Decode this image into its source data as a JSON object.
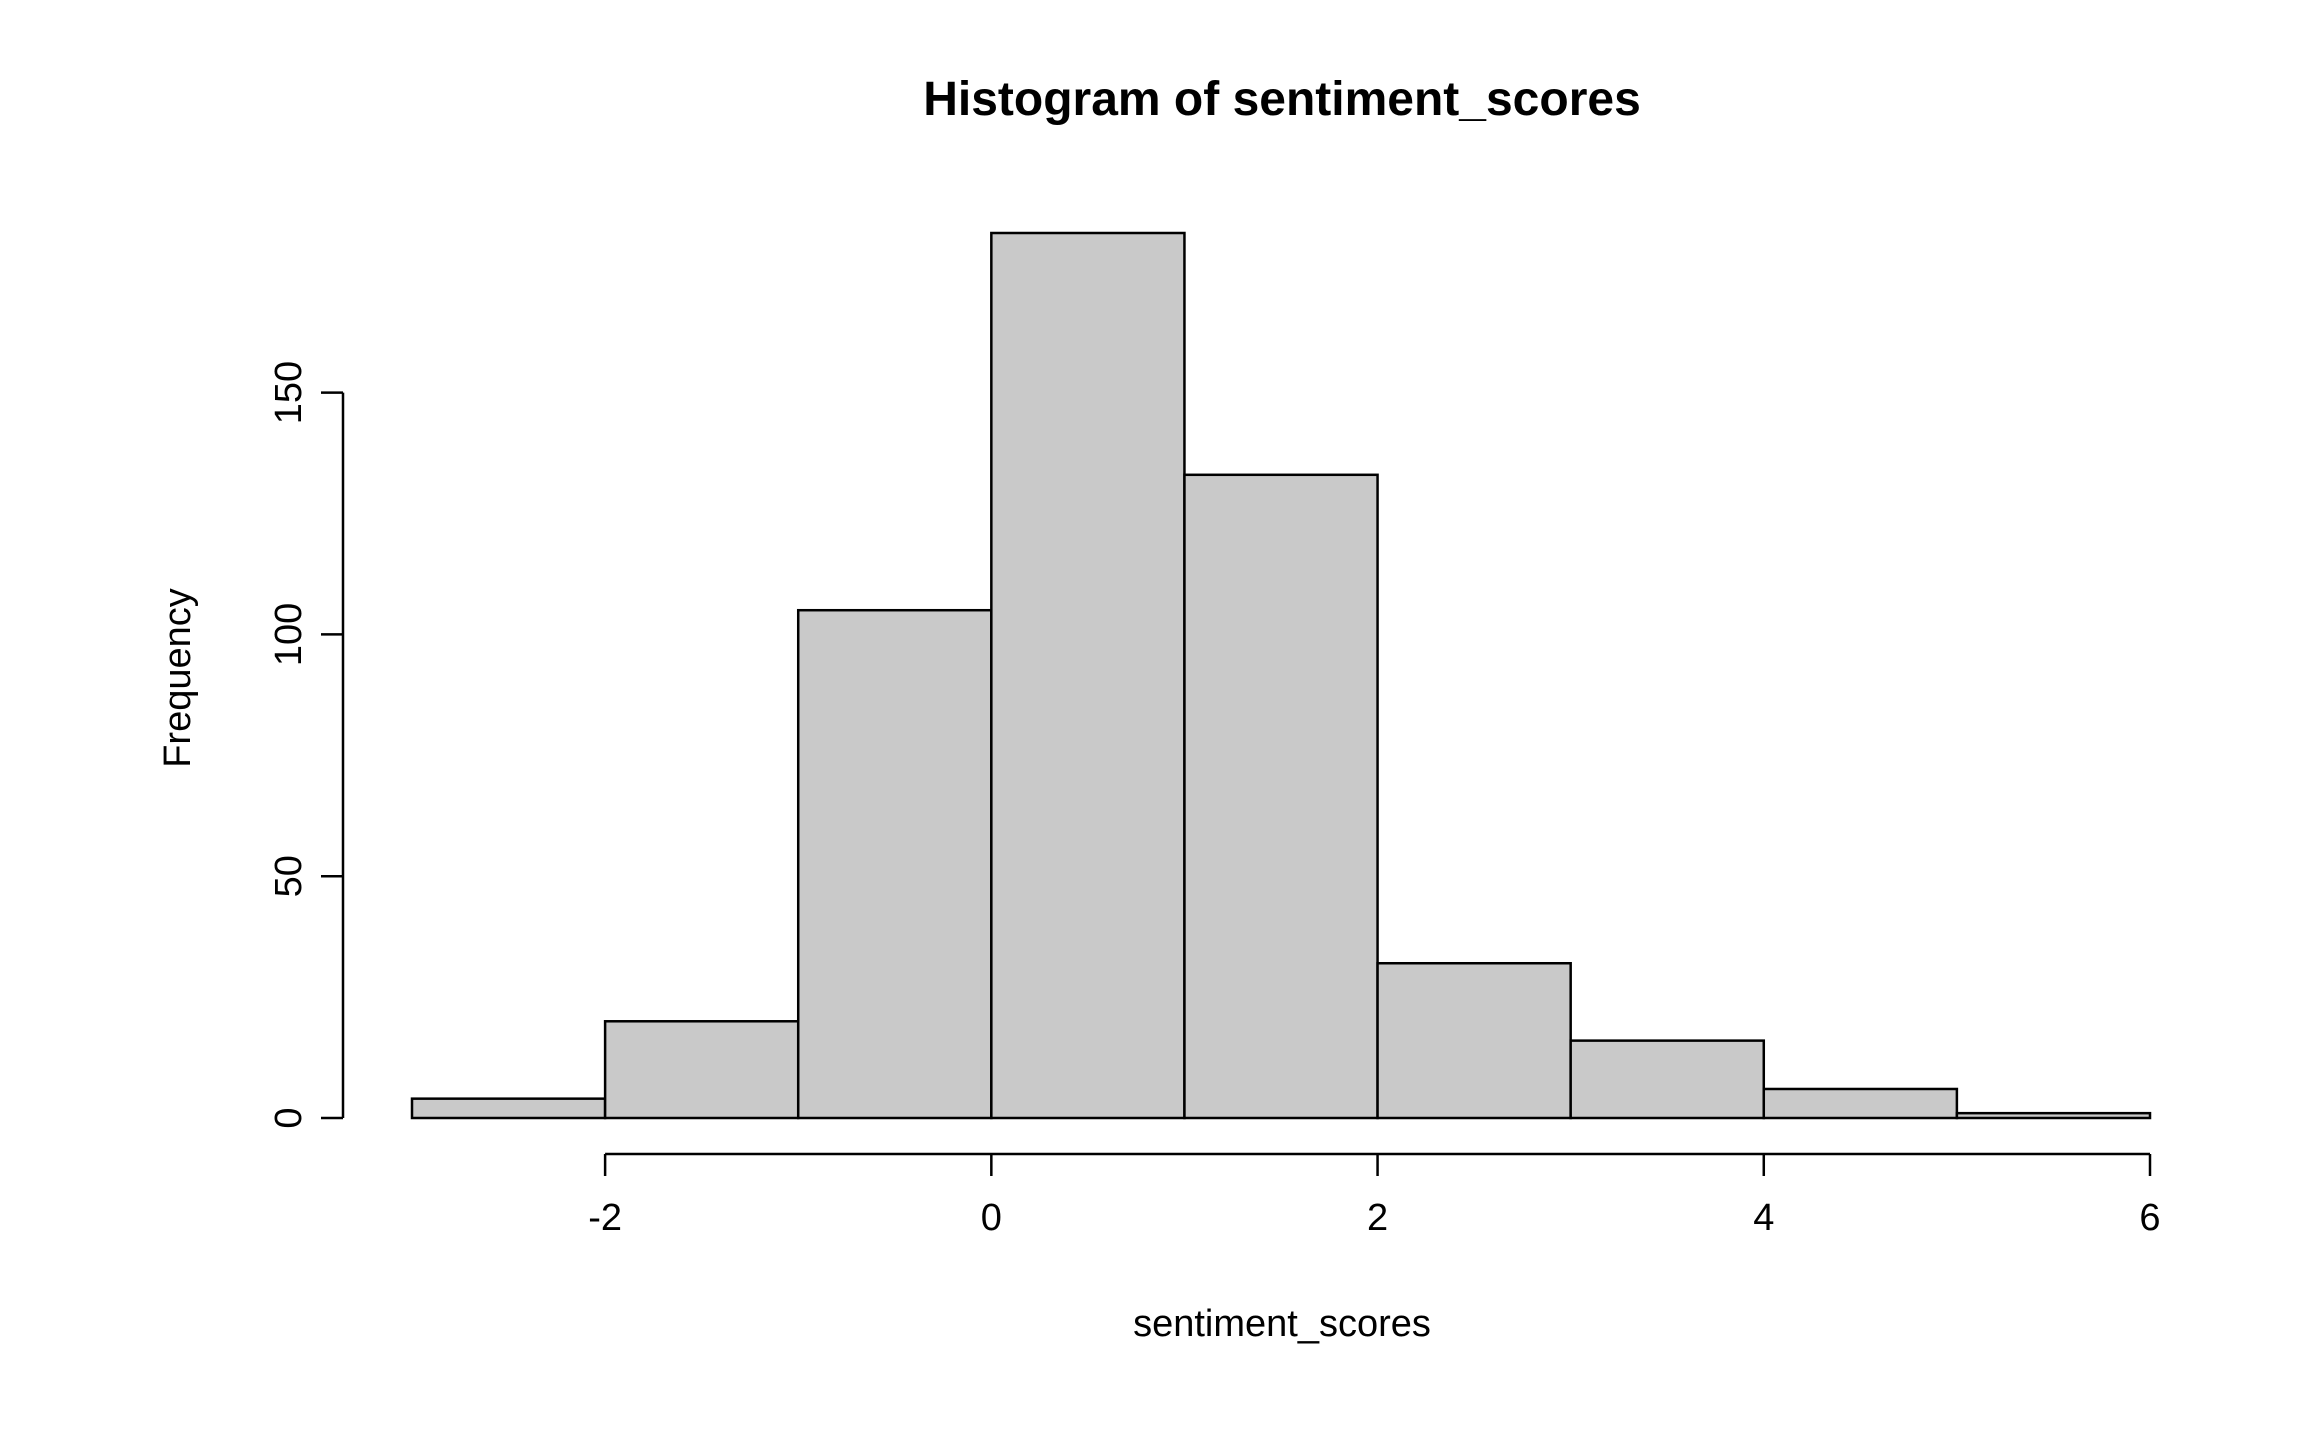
{
  "chart_data": {
    "type": "bar",
    "subtype": "histogram",
    "title": "Histogram of sentiment_scores",
    "xlabel": "sentiment_scores",
    "ylabel": "Frequency",
    "bins": [
      {
        "x0": -3,
        "x1": -2,
        "count": 4
      },
      {
        "x0": -2,
        "x1": -1,
        "count": 20
      },
      {
        "x0": -1,
        "x1": 0,
        "count": 105
      },
      {
        "x0": 0,
        "x1": 1,
        "count": 183
      },
      {
        "x0": 1,
        "x1": 2,
        "count": 133
      },
      {
        "x0": 2,
        "x1": 3,
        "count": 32
      },
      {
        "x0": 3,
        "x1": 4,
        "count": 16
      },
      {
        "x0": 4,
        "x1": 5,
        "count": 6
      },
      {
        "x0": 5,
        "x1": 6,
        "count": 1
      }
    ],
    "xlim": [
      -3,
      6
    ],
    "ylim": [
      0,
      183
    ],
    "xticks": [
      -2,
      0,
      2,
      4,
      6
    ],
    "yticks": [
      0,
      50,
      100,
      150
    ],
    "bar_color": "#c9c9c9",
    "edge_color": "#000000",
    "grid": false,
    "legend": "none"
  }
}
